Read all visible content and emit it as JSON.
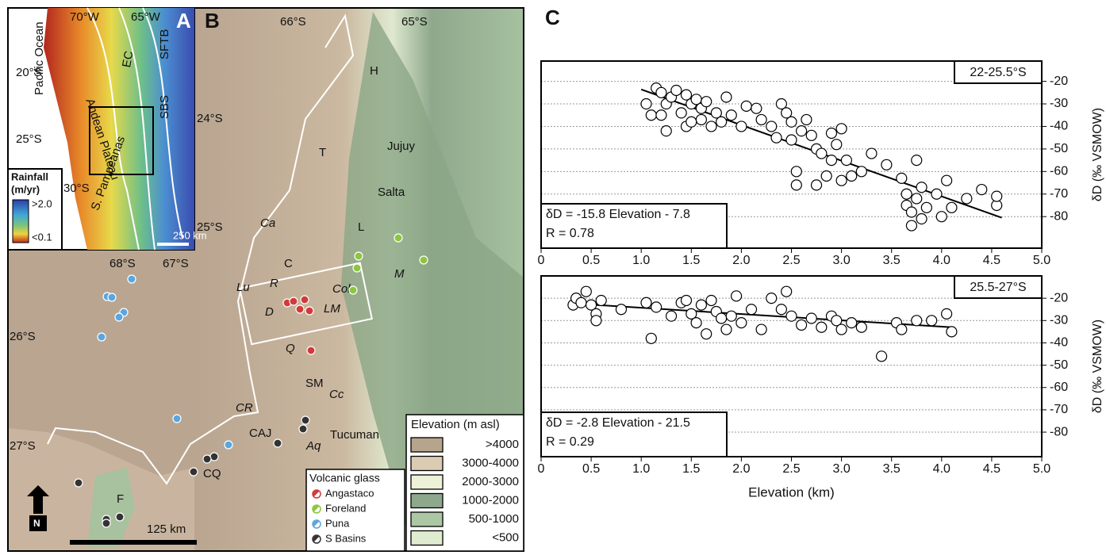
{
  "panel_label_c": "C",
  "chart_data": [
    {
      "type": "scatter",
      "subtitle": "22-25.5°S",
      "y_label": "δD (‰ VSMOW)",
      "annotations": [
        "δD = -15.8 Elevation - 7.8",
        "R = 0.78"
      ],
      "marker_color": "#ffffff",
      "grid": true,
      "xlim": [
        0,
        5
      ],
      "ylim": [
        -94,
        -11
      ],
      "xticks": [
        0,
        0.5,
        {
          "value": 1,
          "label": "1.0"
        },
        1.5,
        {
          "value": 2,
          "label": "2.0"
        },
        2.5,
        {
          "value": 3,
          "label": "3.0"
        },
        3.5,
        {
          "value": 4,
          "label": "4.0"
        },
        4.5,
        {
          "value": 5,
          "label": "5.0"
        }
      ],
      "yticks": [
        -20,
        -30,
        -40,
        -50,
        -60,
        -70,
        -80
      ],
      "x": [
        1.05,
        1.1,
        1.15,
        1.2,
        1.2,
        1.25,
        1.25,
        1.3,
        1.35,
        1.4,
        1.45,
        1.45,
        1.5,
        1.5,
        1.55,
        1.6,
        1.6,
        1.65,
        1.7,
        1.75,
        1.8,
        1.85,
        1.9,
        2.0,
        2.05,
        2.15,
        2.2,
        2.3,
        2.35,
        2.4,
        2.45,
        2.5,
        2.5,
        2.55,
        2.55,
        2.6,
        2.65,
        2.7,
        2.75,
        2.75,
        2.8,
        2.85,
        2.9,
        2.9,
        2.95,
        3.0,
        3.0,
        3.05,
        3.1,
        3.2,
        3.3,
        3.45,
        3.6,
        3.65,
        3.65,
        3.7,
        3.7,
        3.75,
        3.8,
        3.8,
        3.85,
        3.95,
        4.0,
        4.05,
        4.1,
        4.25,
        4.4,
        4.55,
        4.55,
        3.75
      ],
      "values": [
        -30,
        -35,
        -23,
        -25,
        -35,
        -30,
        -42,
        -27,
        -24,
        -34,
        -26,
        -40,
        -30,
        -38,
        -28,
        -32,
        -37,
        -29,
        -40,
        -34,
        -38,
        -27,
        -35,
        -40,
        -31,
        -32,
        -37,
        -40,
        -45,
        -30,
        -34,
        -38,
        -46,
        -60,
        -66,
        -42,
        -37,
        -44,
        -50,
        -66,
        -52,
        -62,
        -43,
        -55,
        -48,
        -41,
        -64,
        -55,
        -62,
        -60,
        -52,
        -57,
        -63,
        -70,
        -75,
        -78,
        -84,
        -72,
        -67,
        -81,
        -76,
        -70,
        -80,
        -64,
        -76,
        -72,
        -68,
        -75,
        -71,
        -55
      ],
      "fit_line": {
        "x": [
          1.0,
          4.6
        ],
        "values": [
          -23.6,
          -80.5
        ]
      }
    },
    {
      "type": "scatter",
      "subtitle": "25.5-27°S",
      "y_label": "δD (‰ VSMOW)",
      "x_label": "Elevation (km)",
      "annotations": [
        "δD = -2.8 Elevation - 21.5",
        "R = 0.29"
      ],
      "marker_color": "#ffffff",
      "grid": true,
      "xlim": [
        0,
        5
      ],
      "ylim": [
        -91,
        -10
      ],
      "xticks": [
        0,
        0.5,
        {
          "value": 1,
          "label": "1.0"
        },
        1.5,
        {
          "value": 2,
          "label": "2.0"
        },
        2.5,
        {
          "value": 3,
          "label": "3.0"
        },
        3.5,
        {
          "value": 4,
          "label": "4.0"
        },
        4.5,
        {
          "value": 5,
          "label": "5.0"
        }
      ],
      "yticks": [
        -20,
        -30,
        -40,
        -50,
        -60,
        -70,
        -80
      ],
      "x": [
        0.32,
        0.35,
        0.4,
        0.45,
        0.5,
        0.55,
        0.55,
        0.6,
        0.8,
        1.05,
        1.1,
        1.15,
        1.3,
        1.4,
        1.45,
        1.5,
        1.55,
        1.6,
        1.65,
        1.7,
        1.75,
        1.8,
        1.85,
        1.9,
        1.95,
        2.0,
        2.1,
        2.2,
        2.3,
        2.4,
        2.5,
        2.45,
        2.6,
        2.7,
        2.8,
        2.9,
        2.95,
        3.0,
        3.1,
        3.2,
        3.4,
        3.55,
        3.6,
        3.75,
        3.9,
        4.05,
        4.1
      ],
      "values": [
        -23,
        -20,
        -22,
        -17,
        -23,
        -27,
        -30,
        -21,
        -25,
        -22,
        -38,
        -24,
        -28,
        -22,
        -21,
        -27,
        -31,
        -23,
        -36,
        -21,
        -26,
        -29,
        -34,
        -28,
        -19,
        -31,
        -25,
        -34,
        -20,
        -25,
        -28,
        -17,
        -32,
        -29,
        -33,
        -28,
        -30,
        -34,
        -31,
        -33,
        -46,
        -31,
        -34,
        -30,
        -30,
        -27,
        -35
      ],
      "fit_line": {
        "x": [
          0.3,
          4.1
        ],
        "values": [
          -22.3,
          -33.0
        ]
      }
    }
  ],
  "map_a": {
    "labels": [
      "A",
      "70°W",
      "65°W",
      "20°S",
      "25°S",
      "30°S",
      "Pacific Ocean",
      "Andean Plateau",
      "EC",
      "SFTB",
      "SBS",
      "S. Pampeanas",
      "Rainfall",
      "(m/yr)",
      ">2.0",
      "<0.1",
      "250 km"
    ]
  },
  "map_b": {
    "labels": [
      "B",
      "66°S",
      "65°S",
      "24°S",
      "25°S",
      "26°S",
      "27°S",
      "68°S",
      "67°S",
      "H",
      "Jujuy",
      "T",
      "Salta",
      "L",
      "Ca",
      "C",
      "Lu",
      "R",
      "Col",
      "D",
      "LM",
      "M",
      "Q",
      "SM",
      "Cc",
      "CR",
      "CAJ",
      "Aq",
      "Tucuman",
      "CQ",
      "F",
      "125 km",
      "N"
    ],
    "glass_legend": {
      "title": "Volcanic glass",
      "items": [
        {
          "name": "Angastaco",
          "color": "#d23a3a"
        },
        {
          "name": "Foreland",
          "color": "#8cc63f"
        },
        {
          "name": "Puna",
          "color": "#5aa6e0"
        },
        {
          "name": "S Basins",
          "color": "#333333"
        }
      ]
    },
    "elevation_legend": {
      "title": "Elevation (m asl)",
      "items": [
        {
          "name": ">4000",
          "color": "#b7a48d"
        },
        {
          "name": "3000-4000",
          "color": "#dccbb3"
        },
        {
          "name": "2000-3000",
          "color": "#ecf1d8"
        },
        {
          "name": "1000-2000",
          "color": "#8ea88c"
        },
        {
          "name": "500-1000",
          "color": "#abc7a3"
        },
        {
          "name": "<500",
          "color": "#dfeccf"
        }
      ]
    }
  }
}
